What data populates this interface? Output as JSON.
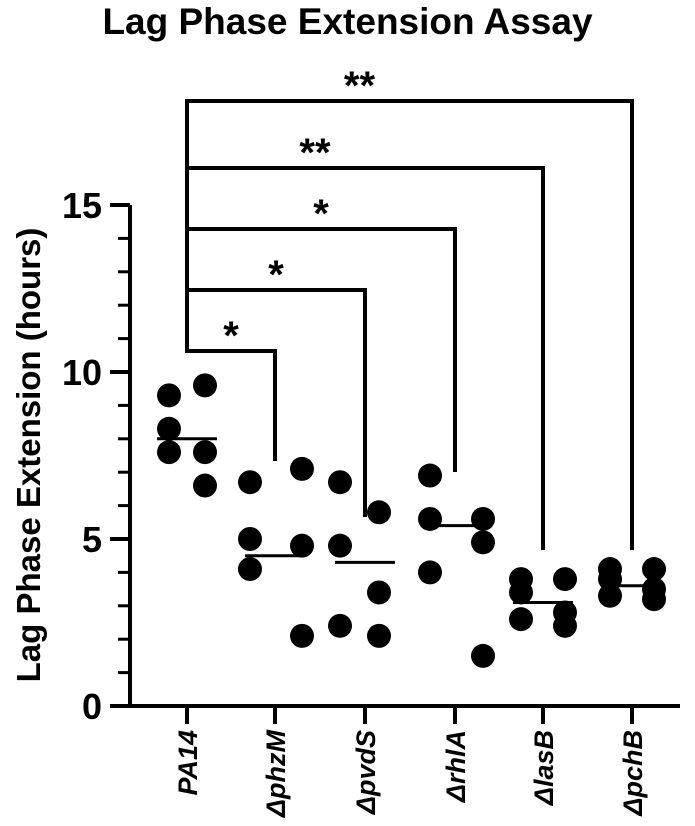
{
  "chart_data": {
    "type": "scatter",
    "title": "Lag Phase Extension Assay",
    "xlabel": "",
    "ylabel": "Lag Phase Extension (hours)",
    "ylim": [
      0,
      15
    ],
    "yticks": [
      0,
      5,
      10,
      15
    ],
    "categories": [
      "PA14",
      "ΔphzM",
      "ΔpvdS",
      "ΔrhlA",
      "ΔlasB",
      "ΔpchB"
    ],
    "points": [
      [
        9.3,
        9.6,
        8.3,
        7.6,
        7.6,
        6.6
      ],
      [
        6.7,
        7.1,
        5.0,
        4.8,
        4.1,
        2.1
      ],
      [
        6.7,
        5.8,
        4.8,
        3.4,
        2.4,
        2.1
      ],
      [
        6.9,
        5.6,
        5.6,
        4.9,
        4.0,
        1.5
      ],
      [
        3.8,
        3.8,
        3.4,
        2.8,
        2.6,
        2.4
      ],
      [
        4.1,
        4.1,
        3.8,
        3.5,
        3.3,
        3.2
      ]
    ],
    "medians": [
      8.0,
      4.5,
      4.3,
      5.4,
      3.1,
      3.6
    ],
    "comparisons": [
      {
        "from": "PA14",
        "to": "ΔphzM",
        "label": "*"
      },
      {
        "from": "PA14",
        "to": "ΔpvdS",
        "label": "*"
      },
      {
        "from": "PA14",
        "to": "ΔrhlA",
        "label": "*"
      },
      {
        "from": "PA14",
        "to": "ΔlasB",
        "label": "**"
      },
      {
        "from": "PA14",
        "to": "ΔpchB",
        "label": "**"
      }
    ],
    "grid": false,
    "legend": "none",
    "colors": {
      "points": "#000000",
      "lines": "#000000"
    }
  }
}
